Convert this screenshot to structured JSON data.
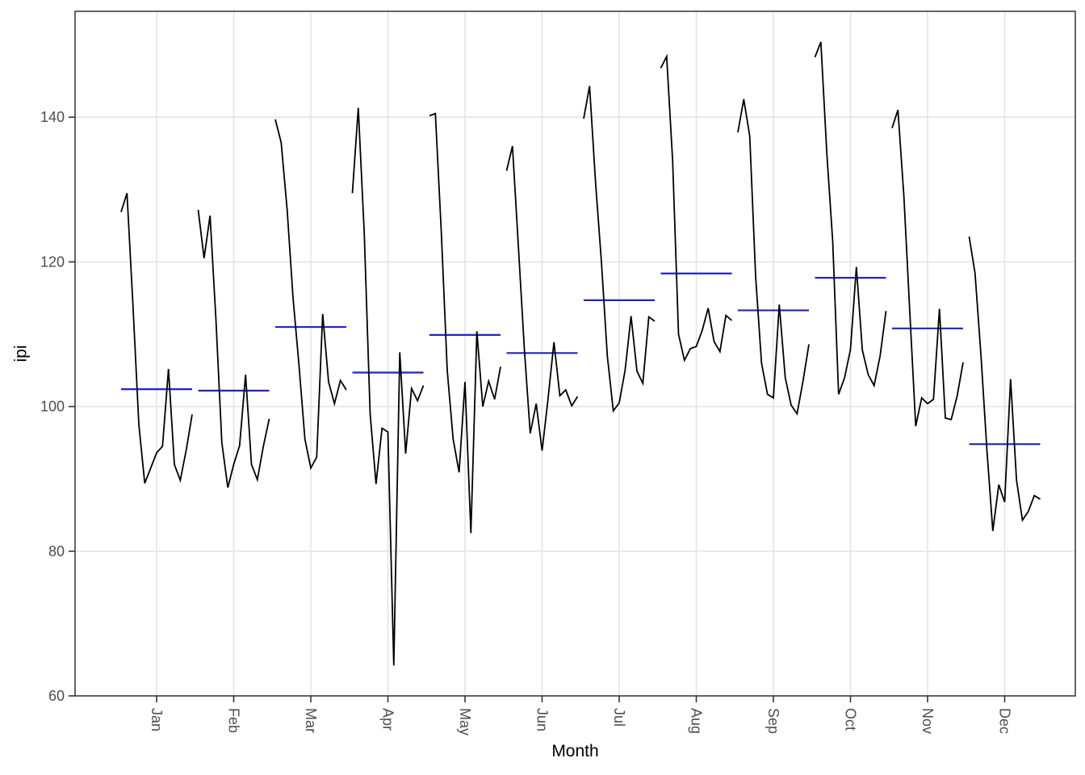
{
  "figure": {
    "background": "#ffffff"
  },
  "style": {
    "series_color": "#000000",
    "mean_line_color": "#2323C0",
    "grid_color": "#E4E4E4",
    "panel_border_color": "#3F3F3F",
    "tick_mark_color": "#333333",
    "tick_label_color": "#4D4D4D",
    "title_color": "#000000"
  },
  "chart_data": {
    "type": "line",
    "subtype": "seasonal-subseries",
    "title": "",
    "xlabel": "Month",
    "ylabel": "ipi",
    "ylim": [
      60,
      154.6
    ],
    "y_ticks": [
      60,
      80,
      100,
      120,
      140
    ],
    "grid": "major-only",
    "legend": "none",
    "categories": [
      "Jan",
      "Feb",
      "Mar",
      "Apr",
      "May",
      "Jun",
      "Jul",
      "Aug",
      "Sep",
      "Oct",
      "Nov",
      "Dec"
    ],
    "series": [
      {
        "month": "Jan",
        "mean": 102.4,
        "values": [
          126.9,
          129.5,
          114.0,
          97.5,
          89.4,
          91.5,
          93.6,
          94.5,
          105.2,
          92.0,
          89.8,
          94.0,
          98.9
        ]
      },
      {
        "month": "Feb",
        "mean": 102.2,
        "values": [
          127.2,
          120.5,
          126.4,
          112.0,
          95.0,
          88.8,
          92.0,
          94.6,
          104.4,
          92.0,
          89.9,
          94.5,
          98.3
        ]
      },
      {
        "month": "Mar",
        "mean": 111.0,
        "values": [
          139.7,
          136.5,
          127.2,
          115.0,
          105.8,
          95.5,
          91.5,
          93.0,
          112.8,
          103.4,
          100.4,
          103.6,
          102.3
        ]
      },
      {
        "month": "Apr",
        "mean": 104.7,
        "values": [
          129.5,
          141.3,
          124.0,
          99.0,
          89.3,
          97.0,
          96.5,
          64.2,
          107.5,
          93.5,
          102.5,
          100.8,
          102.9
        ]
      },
      {
        "month": "May",
        "mean": 109.9,
        "values": [
          140.2,
          140.5,
          124.0,
          105.0,
          95.5,
          90.9,
          103.4,
          82.5,
          110.4,
          100.0,
          103.5,
          101.0,
          105.5
        ]
      },
      {
        "month": "Jun",
        "mean": 107.4,
        "values": [
          132.6,
          136.0,
          122.0,
          108.0,
          96.3,
          100.4,
          93.9,
          101.0,
          108.9,
          101.5,
          102.3,
          100.1,
          101.4
        ]
      },
      {
        "month": "Jul",
        "mean": 114.7,
        "values": [
          139.8,
          144.3,
          131.0,
          120.0,
          107.0,
          99.4,
          100.5,
          105.0,
          112.5,
          104.9,
          103.2,
          112.4,
          111.8
        ]
      },
      {
        "month": "Aug",
        "mean": 118.4,
        "values": [
          146.8,
          148.4,
          134.0,
          110.0,
          106.4,
          108.0,
          108.3,
          110.5,
          113.6,
          109.0,
          107.6,
          112.6,
          111.9
        ]
      },
      {
        "month": "Sep",
        "mean": 113.3,
        "values": [
          137.9,
          142.5,
          137.4,
          118.0,
          106.0,
          101.7,
          101.2,
          114.1,
          104.0,
          100.2,
          99.0,
          103.5,
          108.6
        ]
      },
      {
        "month": "Oct",
        "mean": 117.8,
        "values": [
          148.3,
          150.4,
          135.0,
          122.8,
          101.7,
          104.0,
          107.9,
          119.3,
          107.8,
          104.4,
          102.9,
          107.0,
          113.2
        ]
      },
      {
        "month": "Nov",
        "mean": 110.8,
        "values": [
          138.5,
          141.0,
          129.0,
          113.0,
          97.3,
          101.2,
          100.4,
          101.0,
          113.5,
          98.4,
          98.2,
          101.5,
          106.1
        ]
      },
      {
        "month": "Dec",
        "mean": 94.8,
        "values": [
          123.5,
          118.4,
          107.0,
          94.0,
          82.8,
          89.2,
          86.8,
          103.8,
          89.8,
          84.3,
          85.5,
          87.7,
          87.2
        ]
      }
    ]
  }
}
